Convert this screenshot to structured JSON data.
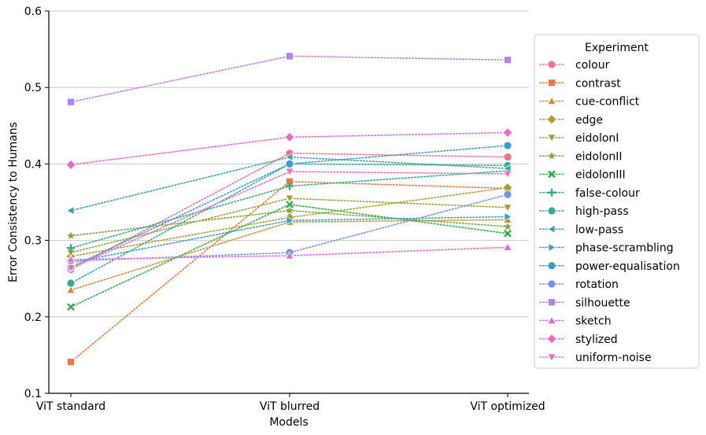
{
  "chart_data": {
    "type": "line",
    "title": "",
    "xlabel": "Models",
    "ylabel": "Error Consistency to Humans",
    "categories": [
      "ViT standard",
      "ViT blurred",
      "ViT optimized"
    ],
    "ylim": [
      0.1,
      0.6
    ],
    "yticks": [
      0.1,
      0.2,
      0.3,
      0.4,
      0.5,
      0.6
    ],
    "ytick_labels": [
      "0.1",
      "0.2",
      "0.3",
      "0.4",
      "0.5",
      "0.6"
    ],
    "grid": "horizontal",
    "legend": {
      "title": "Experiment",
      "placement": "right"
    },
    "series": [
      {
        "name": "colour",
        "color": "#f77189",
        "marker": "circle",
        "values": [
          0.262,
          0.414,
          0.409
        ]
      },
      {
        "name": "contrast",
        "color": "#f3763a",
        "marker": "square",
        "values": [
          0.141,
          0.377,
          0.368
        ]
      },
      {
        "name": "cue-conflict",
        "color": "#d08c32",
        "marker": "triangle-up",
        "values": [
          0.235,
          0.324,
          0.327
        ]
      },
      {
        "name": "edge",
        "color": "#b39931",
        "marker": "diamond",
        "values": [
          0.279,
          0.33,
          0.369
        ]
      },
      {
        "name": "eidolonI",
        "color": "#9ba032",
        "marker": "triangle-down",
        "values": [
          0.284,
          0.355,
          0.343
        ]
      },
      {
        "name": "eidolonII",
        "color": "#7ba834",
        "marker": "star",
        "values": [
          0.306,
          0.339,
          0.318
        ]
      },
      {
        "name": "eidolonIII",
        "color": "#32b147",
        "marker": "x",
        "values": [
          0.213,
          0.347,
          0.309
        ]
      },
      {
        "name": "false-colour",
        "color": "#35ac85",
        "marker": "plus",
        "values": [
          0.29,
          0.371,
          0.391
        ]
      },
      {
        "name": "high-pass",
        "color": "#37a89d",
        "marker": "circle",
        "values": [
          0.244,
          0.4,
          0.398
        ]
      },
      {
        "name": "low-pass",
        "color": "#38a4ad",
        "marker": "triangle-left",
        "values": [
          0.339,
          0.409,
          0.394
        ]
      },
      {
        "name": "phase-scrambling",
        "color": "#3aa1bd",
        "marker": "triangle-right",
        "values": [
          0.271,
          0.326,
          0.331
        ]
      },
      {
        "name": "power-equalisation",
        "color": "#3b9cd4",
        "marker": "circle",
        "values": [
          0.265,
          0.4,
          0.424
        ]
      },
      {
        "name": "rotation",
        "color": "#6e95ec",
        "marker": "circle",
        "values": [
          0.273,
          0.284,
          0.36
        ]
      },
      {
        "name": "silhouette",
        "color": "#b381f3",
        "marker": "square",
        "values": [
          0.481,
          0.541,
          0.536
        ]
      },
      {
        "name": "sketch",
        "color": "#e166f0",
        "marker": "triangle-up",
        "values": [
          0.275,
          0.28,
          0.291
        ]
      },
      {
        "name": "stylized",
        "color": "#f365d0",
        "marker": "diamond",
        "values": [
          0.399,
          0.435,
          0.441
        ]
      },
      {
        "name": "uniform-noise",
        "color": "#f66bb4",
        "marker": "triangle-down",
        "values": [
          0.264,
          0.39,
          0.387
        ]
      }
    ]
  }
}
